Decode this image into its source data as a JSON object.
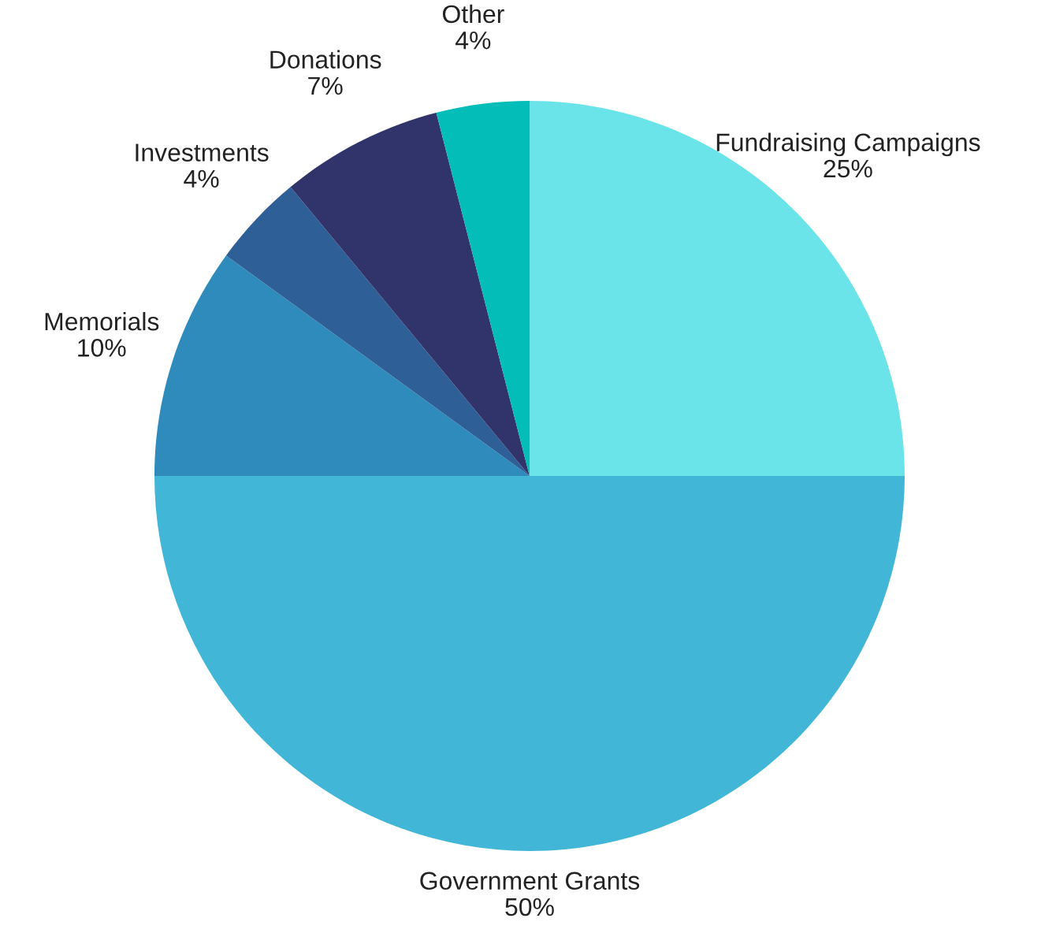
{
  "chart_data": {
    "type": "pie",
    "categories": [
      "Fundraising Campaigns",
      "Government Grants",
      "Memorials",
      "Investments",
      "Donations",
      "Other"
    ],
    "values": [
      25,
      50,
      10,
      4,
      7,
      4
    ],
    "value_labels": [
      "25%",
      "50%",
      "10%",
      "4%",
      "7%",
      "4%"
    ],
    "colors": [
      "#6ae4e8",
      "#42b6d6",
      "#2e8bbb",
      "#2e5f96",
      "#31346a",
      "#03bdb8"
    ]
  }
}
